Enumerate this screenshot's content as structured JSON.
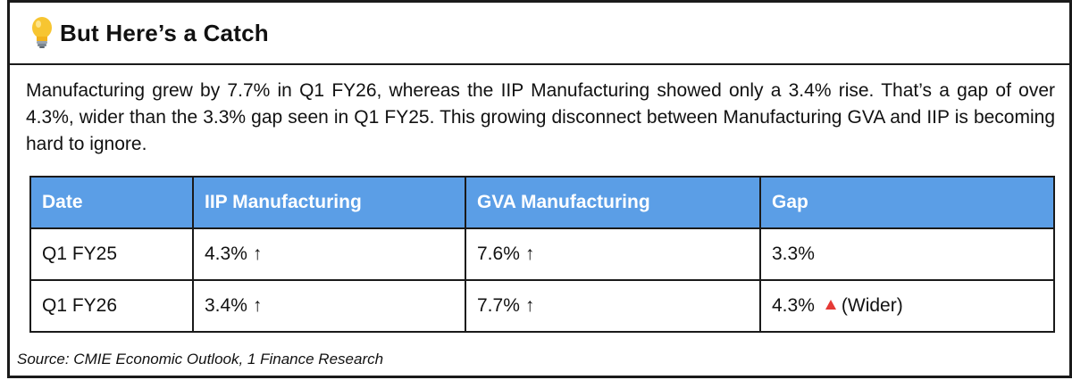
{
  "header": {
    "icon": "lightbulb-icon",
    "title": "But Here’s a Catch"
  },
  "body": {
    "paragraph": "Manufacturing grew by 7.7% in Q1 FY26, whereas the IIP Manufacturing showed only a 3.4% rise. That’s a gap of over 4.3%, wider than the 3.3% gap seen in Q1 FY25. This growing disconnect between Manufacturing GVA and IIP is becoming hard to ignore."
  },
  "table": {
    "header_color": "#5b9ee6",
    "columns": [
      "Date",
      "IIP Manufacturing",
      "GVA Manufacturing",
      "Gap"
    ],
    "rows": [
      {
        "date": "Q1 FY25",
        "iip": "4.3%",
        "iip_arrow": "↑",
        "gva": "7.6%",
        "gva_arrow": "↑",
        "gap": "3.3%"
      },
      {
        "date": "Q1 FY26",
        "iip": "3.4%",
        "iip_arrow": "↑",
        "gva": "7.7%",
        "gva_arrow": "↑",
        "gap": "4.3%",
        "gap_icon": "red-up-triangle-icon",
        "gap_note": "(Wider)"
      }
    ]
  },
  "footer": {
    "source": "Source: CMIE Economic Outlook, 1 Finance Research"
  }
}
